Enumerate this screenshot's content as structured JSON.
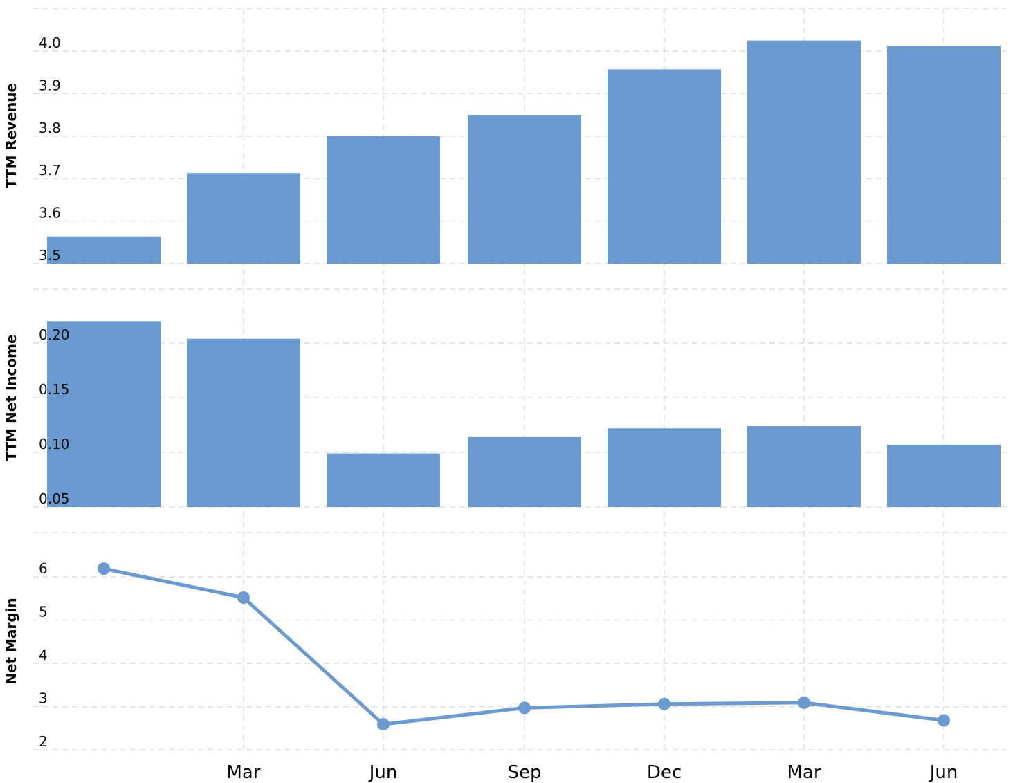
{
  "colors": {
    "bar": "#6a9ad0",
    "line": "#6a9ad0",
    "grid": "#dddddd"
  },
  "chart_data": {
    "type": "bar+line",
    "x_labels": [
      "",
      "Mar",
      "Jun",
      "Sep",
      "Dec",
      "Mar",
      "Jun"
    ],
    "grid": true,
    "panels": [
      {
        "id": "revenue",
        "type": "bar",
        "ylabel": "TTM Revenue",
        "ylim": [
          3.5,
          4.0
        ],
        "yticks": [
          "3.5",
          "3.6",
          "3.7",
          "3.8",
          "3.9",
          "4.0"
        ],
        "values": [
          3.564,
          3.713,
          3.8,
          3.85,
          3.957,
          4.025,
          4.012
        ]
      },
      {
        "id": "net-income",
        "type": "bar",
        "ylabel": "TTM Net Income",
        "ylim": [
          0.05,
          0.2
        ],
        "yticks": [
          "0.05",
          "0.10",
          "0.15",
          "0.20"
        ],
        "values": [
          0.22,
          0.204,
          0.099,
          0.114,
          0.122,
          0.124,
          0.107
        ]
      },
      {
        "id": "net-margin",
        "type": "line",
        "ylabel": "Net Margin",
        "ylim": [
          2,
          6
        ],
        "yticks": [
          "2",
          "3",
          "4",
          "5",
          "6"
        ],
        "values": [
          6.19,
          5.52,
          2.59,
          2.97,
          3.06,
          3.09,
          2.68
        ]
      }
    ]
  }
}
